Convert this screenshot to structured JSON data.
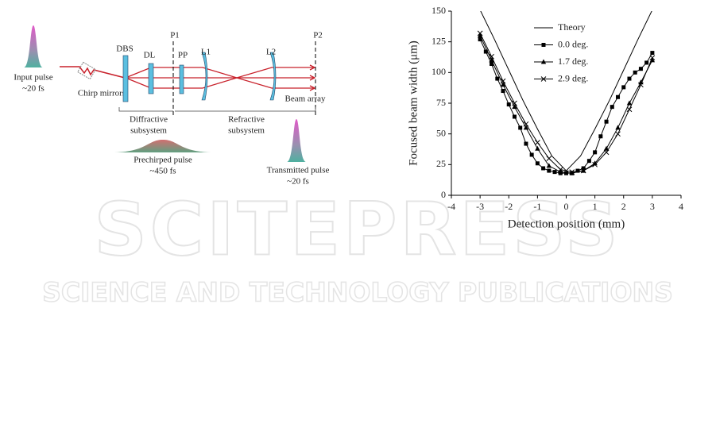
{
  "diagram": {
    "labels": {
      "input_pulse": "Input pulse",
      "input_width": "~20 fs",
      "chirp_mirrors": "Chirp mirrors",
      "dbs": "DBS",
      "dl": "DL",
      "p1": "P1",
      "pp": "PP",
      "l1": "L1",
      "l2": "L2",
      "p2": "P2",
      "beam_array": "Beam array",
      "diffractive": "Diffractive",
      "diffractive_sub": "subsystem",
      "refractive": "Refractive",
      "refractive_sub": "subsystem",
      "prechirped": "Prechirped pulse",
      "prechirped_width": "~450 fs",
      "transmitted": "Transmitted pulse",
      "transmitted_width": "~20 fs"
    }
  },
  "watermark": {
    "title": "SCITEPRESS",
    "subtitle": "SCIENCE AND TECHNOLOGY PUBLICATIONS"
  },
  "chart_data": {
    "type": "line",
    "x_label": "Detection position (mm)",
    "y_label": "Focused beam width (μm)",
    "xlim": [
      -4,
      4
    ],
    "xticks": [
      -4,
      -3,
      -2,
      -1,
      0,
      1,
      2,
      3,
      4
    ],
    "ylim": [
      0,
      150
    ],
    "yticks": [
      0,
      25,
      50,
      75,
      100,
      125,
      150
    ],
    "grid": false,
    "legend": "upper center",
    "series": [
      {
        "name": "Theory",
        "color": "#000000",
        "marker": "none",
        "x": [
          -3,
          -2.5,
          -2,
          -1.5,
          -1,
          -0.5,
          0,
          0.5,
          1,
          1.5,
          2,
          2.5,
          3
        ],
        "values": [
          151,
          127,
          102,
          77,
          54,
          32,
          20,
          32,
          54,
          77,
          102,
          127,
          151
        ]
      },
      {
        "name": "0.0 deg.",
        "color": "#000000",
        "marker": "square",
        "x": [
          -3,
          -2.8,
          -2.6,
          -2.4,
          -2.2,
          -2,
          -1.8,
          -1.6,
          -1.4,
          -1.2,
          -1,
          -0.8,
          -0.6,
          -0.4,
          -0.2,
          0,
          0.2,
          0.4,
          0.6,
          0.8,
          1,
          1.2,
          1.4,
          1.6,
          1.8,
          2,
          2.2,
          2.4,
          2.6,
          2.8,
          3
        ],
        "values": [
          127,
          117,
          107,
          95,
          85,
          74,
          64,
          55,
          42,
          33,
          26,
          22,
          20,
          19,
          18,
          18,
          18,
          20,
          22,
          28,
          35,
          48,
          60,
          72,
          80,
          88,
          95,
          100,
          103,
          108,
          116
        ]
      },
      {
        "name": "1.7 deg.",
        "color": "#000000",
        "marker": "triangle",
        "x": [
          -3,
          -2.6,
          -2.2,
          -1.8,
          -1.4,
          -1,
          -0.6,
          -0.2,
          0.2,
          0.6,
          1,
          1.4,
          1.8,
          2.2,
          2.6,
          3
        ],
        "values": [
          130,
          110,
          90,
          72,
          55,
          38,
          24,
          19,
          18,
          20,
          26,
          38,
          55,
          75,
          92,
          110
        ]
      },
      {
        "name": "2.9 deg.",
        "color": "#000000",
        "marker": "cross",
        "x": [
          -3,
          -2.6,
          -2.2,
          -1.8,
          -1.4,
          -1,
          -0.6,
          -0.2,
          0.2,
          0.6,
          1,
          1.4,
          1.8,
          2.2,
          2.6,
          3
        ],
        "values": [
          132,
          113,
          93,
          75,
          58,
          43,
          30,
          21,
          19,
          20,
          25,
          35,
          50,
          70,
          90,
          112
        ]
      }
    ]
  }
}
